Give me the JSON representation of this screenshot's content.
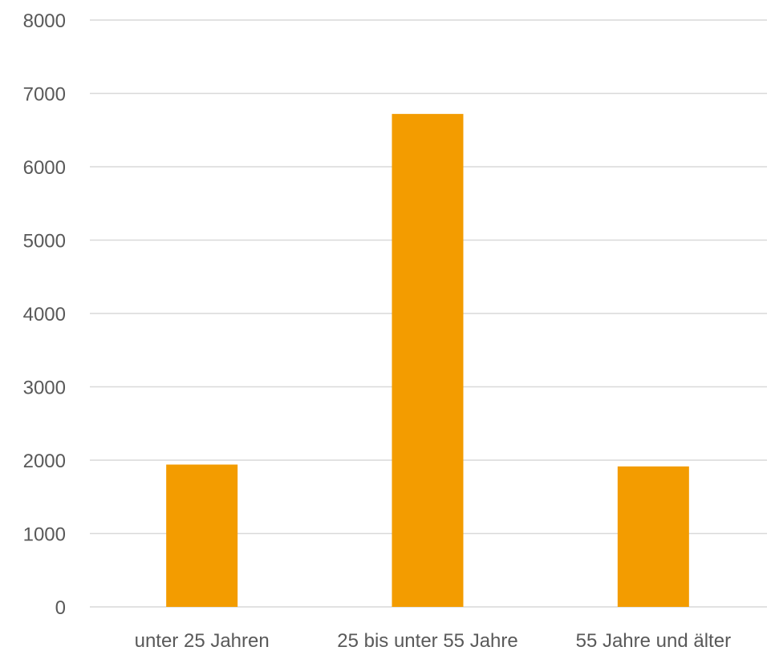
{
  "chart_data": {
    "type": "bar",
    "title": "",
    "xlabel": "",
    "ylabel": "",
    "categories": [
      "unter 25 Jahren",
      "25 bis unter 55 Jahre",
      "55 Jahre und älter"
    ],
    "values": [
      1940,
      6720,
      1915
    ],
    "ylim": [
      0,
      8000
    ],
    "yticks": [
      0,
      1000,
      2000,
      3000,
      4000,
      5000,
      6000,
      7000,
      8000
    ],
    "grid": true,
    "legend": "none",
    "colors": {
      "bar": "#F39C00",
      "grid": "#D9D9D9",
      "text": "#595959"
    }
  }
}
